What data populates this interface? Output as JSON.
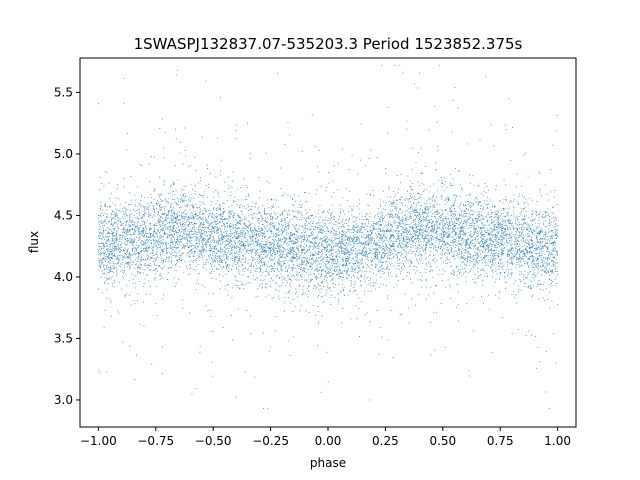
{
  "chart_data": {
    "type": "scatter",
    "title": "1SWASPJ132837.07-535203.3 Period 1523852.375s",
    "xlabel": "phase",
    "ylabel": "flux",
    "xlim": [
      -1.08,
      1.08
    ],
    "ylim": [
      2.78,
      5.78
    ],
    "x_ticks": [
      -1.0,
      -0.75,
      -0.5,
      -0.25,
      0.0,
      0.25,
      0.5,
      0.75,
      1.0
    ],
    "x_tick_labels": [
      "−1.00",
      "−0.75",
      "−0.50",
      "−0.25",
      "0.00",
      "0.25",
      "0.50",
      "0.75",
      "1.00"
    ],
    "y_ticks": [
      3.0,
      3.5,
      4.0,
      4.5,
      5.0,
      5.5
    ],
    "y_tick_labels": [
      "3.0",
      "3.5",
      "4.0",
      "4.5",
      "5.0",
      "5.5"
    ],
    "grid": false,
    "point_color": "#1f77b4",
    "series": [
      {
        "x": [
          -1.0,
          -0.9,
          -0.8,
          -0.7,
          -0.6,
          -0.5,
          -0.4,
          -0.3,
          -0.2,
          -0.1,
          0.0,
          0.1,
          0.2,
          0.3,
          0.4,
          0.5,
          0.6,
          0.7,
          0.8,
          0.9,
          1.0
        ],
        "y": [
          4.25,
          4.28,
          4.3,
          4.38,
          4.4,
          4.35,
          4.3,
          4.28,
          4.25,
          4.22,
          4.2,
          4.22,
          4.25,
          4.35,
          4.4,
          4.38,
          4.35,
          4.3,
          4.28,
          4.25,
          4.25
        ]
      }
    ]
  }
}
